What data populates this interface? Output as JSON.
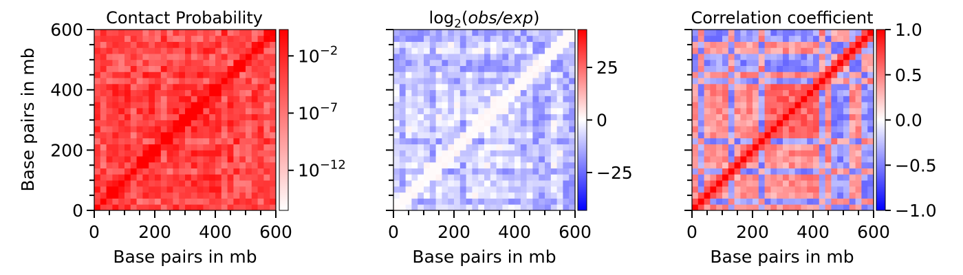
{
  "chart_data": [
    {
      "type": "heatmap",
      "title": "Contact Probability",
      "xlabel": "Base pairs in mb",
      "ylabel": "Base pairs in mb",
      "xlim": [
        0,
        600
      ],
      "ylim": [
        0,
        600
      ],
      "xticks": [
        "0",
        "200",
        "400",
        "600"
      ],
      "yticks": [
        "0",
        "200",
        "400",
        "600"
      ],
      "colormap": "white-to-red",
      "colors": {
        "low": "#ffffff",
        "high": "#ff0000"
      },
      "colorbar": {
        "scale": "log",
        "ticks": [
          {
            "exp": "−2",
            "value": 0.01
          },
          {
            "exp": "−7",
            "value": 1e-07
          },
          {
            "exp": "−12",
            "value": 1e-12
          }
        ],
        "tick_base": "10"
      },
      "feature": "strong diagonal band, high contact probability overall"
    },
    {
      "type": "heatmap",
      "title_parts": {
        "prefix": "log",
        "subscript": "2",
        "open": "(",
        "italic": "obs/exp",
        "close": ")"
      },
      "xlabel": "Base pairs in mb",
      "ylabel": "",
      "xlim": [
        0,
        600
      ],
      "ylim": [
        0,
        600
      ],
      "xticks": [
        "0",
        "200",
        "400",
        "600"
      ],
      "colormap": "bwr",
      "colors": {
        "low": "#0000ff",
        "mid": "#ffffff",
        "high": "#ff0000"
      },
      "colorbar": {
        "range": [
          -43,
          43
        ],
        "ticks": [
          {
            "label": "25",
            "value": 25
          },
          {
            "label": "0",
            "value": 0
          },
          {
            "label": "−25",
            "value": -25
          }
        ]
      },
      "feature": "mostly blue checkerboard with light diagonal"
    },
    {
      "type": "heatmap",
      "title": "Correlation coefficient",
      "xlabel": "Base pairs in mb",
      "ylabel": "",
      "xlim": [
        0,
        600
      ],
      "ylim": [
        0,
        600
      ],
      "xticks": [
        "0",
        "200",
        "400",
        "600"
      ],
      "colormap": "bwr",
      "colors": {
        "low": "#0000ff",
        "mid": "#ffffff",
        "high": "#ff0000"
      },
      "colorbar": {
        "range": [
          -1,
          1
        ],
        "ticks": [
          {
            "label": "1.0",
            "value": 1
          },
          {
            "label": "0.5",
            "value": 0.5
          },
          {
            "label": "0.0",
            "value": 0
          },
          {
            "label": "−0.5",
            "value": -0.5
          },
          {
            "label": "−1.0",
            "value": -1
          }
        ]
      },
      "feature": "red diagonal, red block around 250–450 mb, blue off-diagonal blocks"
    }
  ]
}
